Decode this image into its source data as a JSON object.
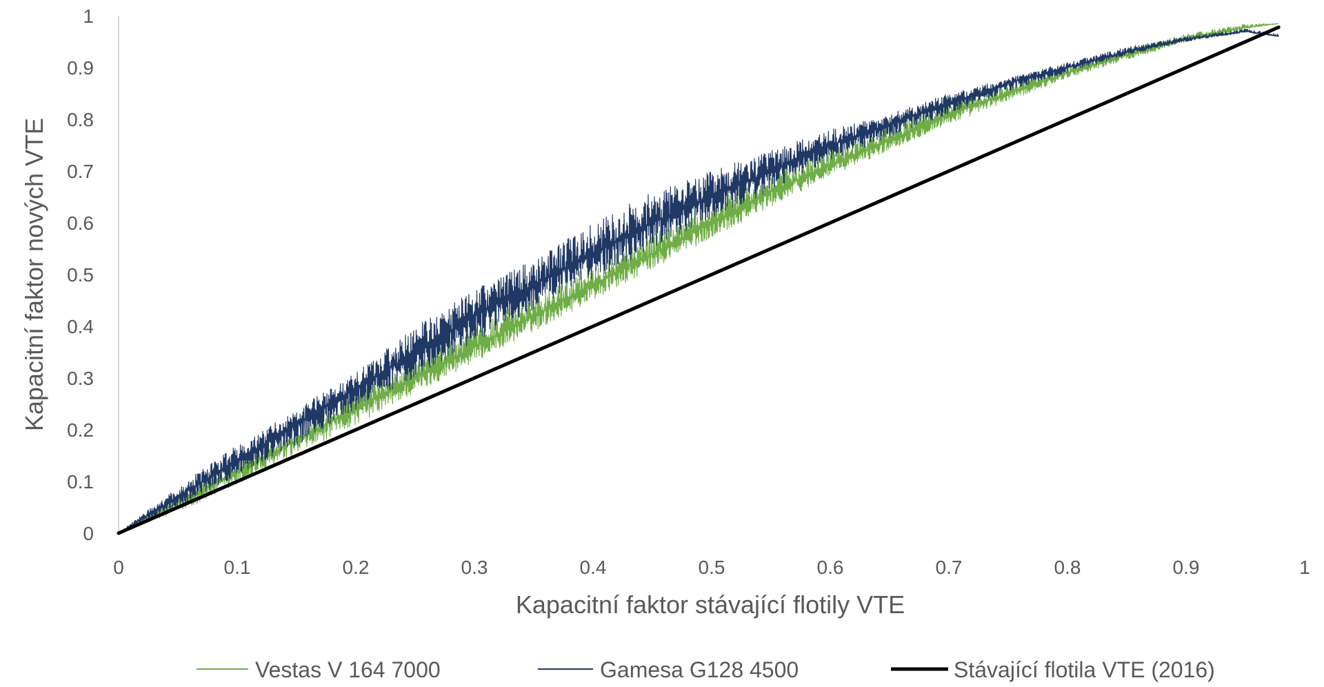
{
  "chart_data": {
    "type": "line",
    "title": "",
    "xlabel": "Kapacitní faktor stávající flotily VTE",
    "ylabel": "Kapacitní faktor nových VTE",
    "xlim": [
      0,
      1
    ],
    "ylim": [
      0,
      1
    ],
    "x_ticks": [
      "0",
      "0.1",
      "0.2",
      "0.3",
      "0.4",
      "0.5",
      "0.6",
      "0.7",
      "0.8",
      "0.9",
      "1"
    ],
    "y_ticks": [
      "0",
      "0.1",
      "0.2",
      "0.3",
      "0.4",
      "0.5",
      "0.6",
      "0.7",
      "0.8",
      "0.9",
      "1"
    ],
    "grid": false,
    "legend_position": "bottom",
    "series": [
      {
        "name": "Vestas V 164 7000",
        "color": "#70ad47",
        "noisy": true,
        "x": [
          0.0,
          0.05,
          0.1,
          0.15,
          0.2,
          0.25,
          0.3,
          0.35,
          0.4,
          0.45,
          0.5,
          0.55,
          0.6,
          0.65,
          0.7,
          0.75,
          0.8,
          0.85,
          0.9,
          0.95,
          0.978
        ],
        "y": [
          0.0,
          0.06,
          0.12,
          0.18,
          0.24,
          0.3,
          0.36,
          0.42,
          0.48,
          0.54,
          0.6,
          0.66,
          0.71,
          0.76,
          0.81,
          0.85,
          0.89,
          0.925,
          0.955,
          0.978,
          0.985
        ],
        "y_low": [
          0.0,
          0.04,
          0.09,
          0.15,
          0.21,
          0.27,
          0.33,
          0.39,
          0.45,
          0.51,
          0.57,
          0.63,
          0.69,
          0.74,
          0.79,
          0.835,
          0.88,
          0.915,
          0.95,
          0.975,
          0.985
        ],
        "y_high": [
          0.0,
          0.07,
          0.14,
          0.2,
          0.27,
          0.33,
          0.4,
          0.46,
          0.52,
          0.58,
          0.64,
          0.69,
          0.74,
          0.79,
          0.83,
          0.87,
          0.9,
          0.935,
          0.965,
          0.985,
          0.985
        ]
      },
      {
        "name": "Gamesa G128 4500",
        "color": "#203864",
        "noisy": true,
        "x": [
          0.0,
          0.05,
          0.1,
          0.15,
          0.2,
          0.25,
          0.3,
          0.35,
          0.4,
          0.45,
          0.5,
          0.55,
          0.6,
          0.65,
          0.7,
          0.75,
          0.8,
          0.85,
          0.9,
          0.95,
          0.978
        ],
        "y": [
          0.0,
          0.07,
          0.14,
          0.21,
          0.28,
          0.35,
          0.42,
          0.48,
          0.54,
          0.6,
          0.65,
          0.7,
          0.75,
          0.79,
          0.83,
          0.87,
          0.9,
          0.93,
          0.955,
          0.97,
          0.96
        ],
        "y_low": [
          0.0,
          0.05,
          0.11,
          0.17,
          0.24,
          0.3,
          0.37,
          0.43,
          0.49,
          0.55,
          0.61,
          0.66,
          0.72,
          0.765,
          0.81,
          0.855,
          0.89,
          0.925,
          0.95,
          0.968,
          0.96
        ],
        "y_high": [
          0.0,
          0.09,
          0.17,
          0.24,
          0.31,
          0.4,
          0.47,
          0.53,
          0.6,
          0.66,
          0.7,
          0.74,
          0.78,
          0.81,
          0.85,
          0.88,
          0.91,
          0.94,
          0.96,
          0.975,
          0.965
        ]
      },
      {
        "name": "Stávající flotila VTE (2016)",
        "color": "#000000",
        "noisy": false,
        "x": [
          0.0,
          0.978
        ],
        "y": [
          0.0,
          0.978
        ]
      }
    ]
  }
}
